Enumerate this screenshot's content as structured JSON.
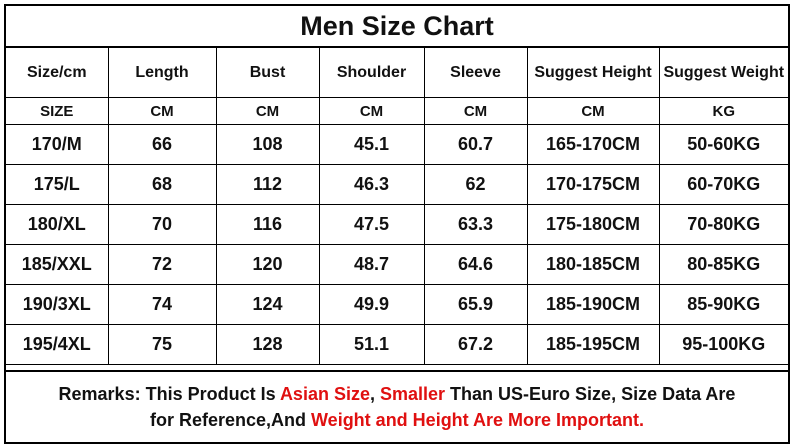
{
  "title": "Men Size Chart",
  "headers": [
    "Size/cm",
    "Length",
    "Bust",
    "Shoulder",
    "Sleeve",
    "Suggest Height",
    "Suggest Weight"
  ],
  "units": [
    "SIZE",
    "CM",
    "CM",
    "CM",
    "CM",
    "CM",
    "KG"
  ],
  "rows": [
    [
      "170/M",
      "66",
      "108",
      "45.1",
      "60.7",
      "165-170CM",
      "50-60KG"
    ],
    [
      "175/L",
      "68",
      "112",
      "46.3",
      "62",
      "170-175CM",
      "60-70KG"
    ],
    [
      "180/XL",
      "70",
      "116",
      "47.5",
      "63.3",
      "175-180CM",
      "70-80KG"
    ],
    [
      "185/XXL",
      "72",
      "120",
      "48.7",
      "64.6",
      "180-185CM",
      "80-85KG"
    ],
    [
      "190/3XL",
      "74",
      "124",
      "49.9",
      "65.9",
      "185-190CM",
      "85-90KG"
    ],
    [
      "195/4XL",
      "75",
      "128",
      "51.1",
      "67.2",
      "185-195CM",
      "95-100KG"
    ]
  ],
  "remarks": {
    "line1": [
      {
        "text": "Remarks: This Product Is ",
        "color": "#111111"
      },
      {
        "text": "Asian Size",
        "color": "#e01010"
      },
      {
        "text": ", ",
        "color": "#111111"
      },
      {
        "text": "Smaller",
        "color": "#e01010"
      },
      {
        "text": " Than US-Euro Size, Size Data Are",
        "color": "#111111"
      }
    ],
    "line2": [
      {
        "text": "for Reference,And ",
        "color": "#111111"
      },
      {
        "text": "Weight and Height Are More Important.",
        "color": "#e01010"
      }
    ]
  }
}
